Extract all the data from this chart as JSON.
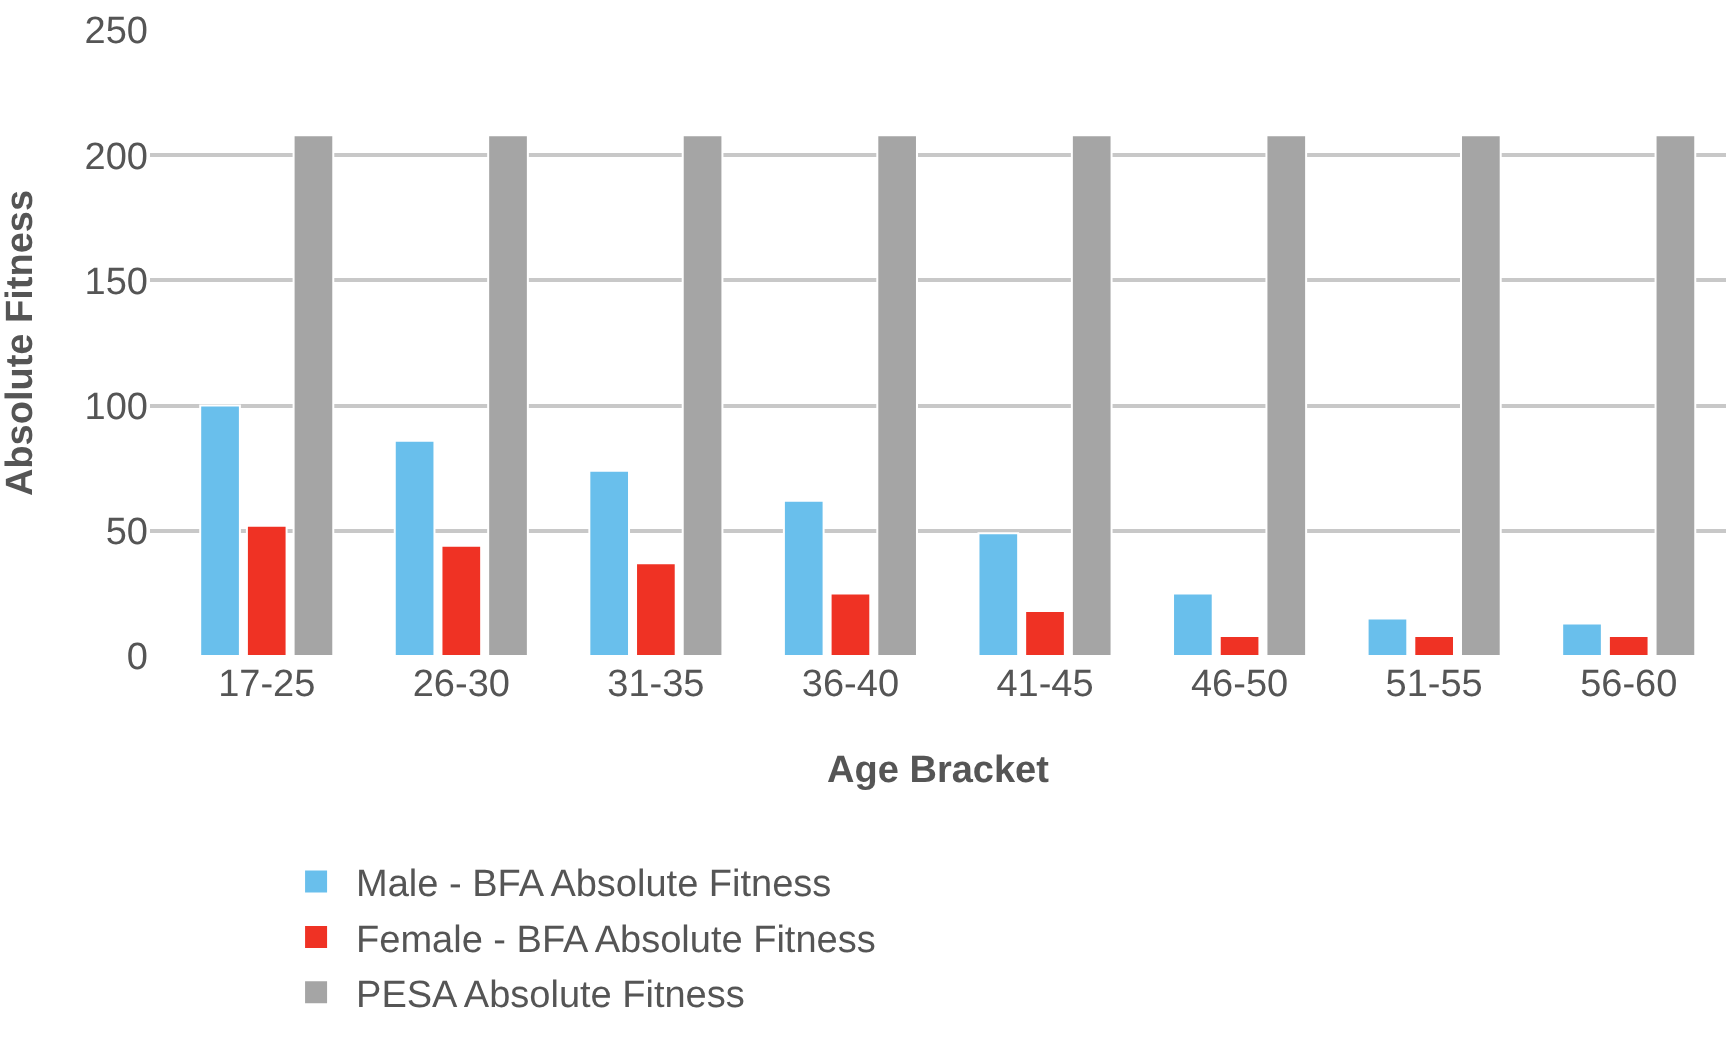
{
  "chart_data": {
    "type": "bar",
    "xlabel": "Age Bracket",
    "ylabel": "Absolute Fitness",
    "categories": [
      "17-25",
      "26-30",
      "31-35",
      "36-40",
      "41-45",
      "46-50",
      "51-55",
      "56-60"
    ],
    "series": [
      {
        "name": "Male - BFA Absolute Fitness",
        "color": "#69bfec",
        "values": [
          100,
          86,
          74,
          62,
          49,
          25,
          15,
          13
        ]
      },
      {
        "name": "Female - BFA Absolute Fitness",
        "color": "#ef3224",
        "values": [
          52,
          44,
          37,
          25,
          18,
          8,
          8,
          8
        ]
      },
      {
        "name": "PESA Absolute Fitness",
        "color": "#a5a5a5",
        "values": [
          208,
          208,
          208,
          208,
          208,
          208,
          208,
          208
        ]
      }
    ],
    "ylim": [
      0,
      250
    ],
    "yticks": [
      0,
      50,
      100,
      150,
      200,
      250
    ],
    "grid": "y",
    "legend": "bottom left"
  }
}
